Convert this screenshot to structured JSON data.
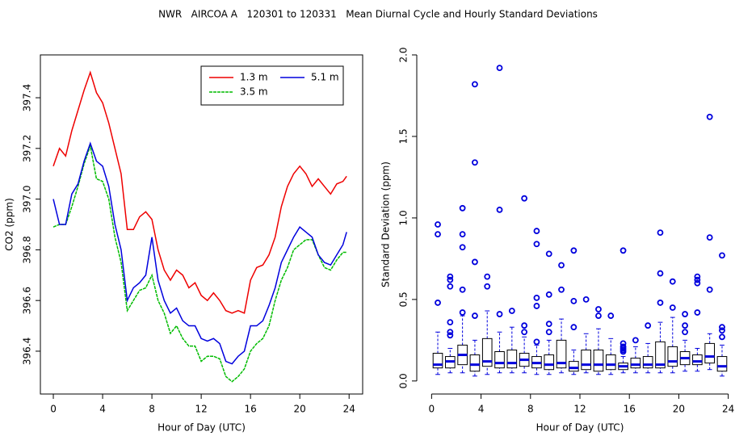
{
  "title": "NWR   AIRCOA A   120301 to 120331   Mean Diurnal Cycle and Hourly Standard Deviations",
  "chart_data": [
    {
      "type": "line",
      "xlabel": "Hour of Day (UTC)",
      "ylabel": "CO2 (ppm)",
      "xlim": [
        -1.05,
        25.1
      ],
      "ylim": [
        396.231,
        397.569
      ],
      "xticks": [
        0,
        4,
        8,
        12,
        16,
        20,
        24
      ],
      "yticks": [
        396.4,
        396.6,
        396.8,
        {
          "value": 397,
          "label": "397.0"
        },
        397.2,
        397.4
      ],
      "legend": "topright",
      "x": [
        0,
        0.5,
        1,
        1.5,
        2,
        2.5,
        3,
        3.5,
        4,
        4.5,
        5,
        5.5,
        6,
        6.5,
        7,
        7.5,
        8,
        8.5,
        9,
        9.5,
        10,
        10.5,
        11,
        11.5,
        12,
        12.5,
        13,
        13.5,
        14,
        14.5,
        15,
        15.5,
        16,
        16.5,
        17,
        17.5,
        18,
        18.5,
        19,
        19.5,
        20,
        20.5,
        21,
        21.5,
        22,
        22.5,
        23,
        23.5,
        23.8
      ],
      "series": [
        {
          "name": "1.3 m",
          "color": "#ee0000",
          "values": [
            397.13,
            397.2,
            397.17,
            397.27,
            397.35,
            397.43,
            397.5,
            397.42,
            397.38,
            397.3,
            397.2,
            397.1,
            396.88,
            396.88,
            396.93,
            396.95,
            396.92,
            396.8,
            396.72,
            396.68,
            396.72,
            396.7,
            396.65,
            396.67,
            396.62,
            396.6,
            396.63,
            396.6,
            396.56,
            396.55,
            396.56,
            396.55,
            396.68,
            396.73,
            396.74,
            396.78,
            396.85,
            396.97,
            397.05,
            397.1,
            397.13,
            397.1,
            397.05,
            397.08,
            397.05,
            397.02,
            397.06,
            397.07,
            397.09
          ]
        },
        {
          "name": "3.5 m",
          "color": "#00bb00",
          "values": [
            396.89,
            396.9,
            396.9,
            396.97,
            397.05,
            397.14,
            397.21,
            397.08,
            397.07,
            397.0,
            396.85,
            396.75,
            396.56,
            396.6,
            396.64,
            396.65,
            396.7,
            396.6,
            396.55,
            396.47,
            396.5,
            396.45,
            396.42,
            396.42,
            396.36,
            396.38,
            396.38,
            396.37,
            396.3,
            396.28,
            396.3,
            396.33,
            396.4,
            396.43,
            396.45,
            396.5,
            396.6,
            396.68,
            396.73,
            396.8,
            396.82,
            396.84,
            396.84,
            396.78,
            396.73,
            396.72,
            396.76,
            396.79,
            396.79
          ]
        },
        {
          "name": "5.1 m",
          "color": "#0000dd",
          "values": [
            397.0,
            396.9,
            396.9,
            397.02,
            397.06,
            397.15,
            397.22,
            397.15,
            397.13,
            397.05,
            396.9,
            396.8,
            396.6,
            396.65,
            396.67,
            396.7,
            396.85,
            396.68,
            396.6,
            396.55,
            396.57,
            396.52,
            396.5,
            396.5,
            396.45,
            396.44,
            396.45,
            396.43,
            396.36,
            396.35,
            396.38,
            396.4,
            396.5,
            396.5,
            396.52,
            396.58,
            396.65,
            396.75,
            396.8,
            396.85,
            396.89,
            396.87,
            396.85,
            396.78,
            396.75,
            396.74,
            396.78,
            396.82,
            396.87
          ]
        }
      ]
    },
    {
      "type": "boxplot",
      "xlabel": "Hour of Day (UTC)",
      "ylabel": "Standard Deviation (ppm)",
      "xlim": [
        -1.2,
        25.2
      ],
      "ylim": [
        -0.08,
        2.0
      ],
      "xticks": [
        0,
        4,
        8,
        12,
        16,
        20,
        24
      ],
      "yticks": [
        {
          "value": 0,
          "label": "0.0"
        },
        0.5,
        {
          "value": 1,
          "label": "1.0"
        },
        1.5,
        {
          "value": 2,
          "label": "2.0"
        }
      ],
      "color": "#0000dd",
      "x": [
        0.5,
        1.5,
        2.5,
        3.5,
        4.5,
        5.5,
        6.5,
        7.5,
        8.5,
        9.5,
        10.5,
        11.5,
        12.5,
        13.5,
        14.5,
        15.5,
        16.5,
        17.5,
        18.5,
        19.5,
        20.5,
        21.5,
        22.5,
        23.5
      ],
      "lower_whisker": [
        0.04,
        0.05,
        0.05,
        0.03,
        0.04,
        0.05,
        0.05,
        0.05,
        0.04,
        0.04,
        0.05,
        0.04,
        0.05,
        0.04,
        0.04,
        0.05,
        0.05,
        0.05,
        0.05,
        0.05,
        0.06,
        0.06,
        0.07,
        0.03
      ],
      "q1": [
        0.08,
        0.08,
        0.1,
        0.06,
        0.09,
        0.08,
        0.08,
        0.09,
        0.08,
        0.07,
        0.08,
        0.06,
        0.07,
        0.06,
        0.07,
        0.07,
        0.08,
        0.08,
        0.08,
        0.09,
        0.1,
        0.1,
        0.11,
        0.06
      ],
      "median": [
        0.1,
        0.12,
        0.16,
        0.1,
        0.12,
        0.11,
        0.11,
        0.13,
        0.11,
        0.1,
        0.11,
        0.08,
        0.1,
        0.1,
        0.1,
        0.09,
        0.1,
        0.1,
        0.1,
        0.12,
        0.14,
        0.12,
        0.15,
        0.09
      ],
      "q3": [
        0.17,
        0.15,
        0.22,
        0.16,
        0.26,
        0.18,
        0.19,
        0.17,
        0.15,
        0.16,
        0.25,
        0.12,
        0.19,
        0.19,
        0.16,
        0.11,
        0.14,
        0.15,
        0.24,
        0.21,
        0.18,
        0.16,
        0.23,
        0.15
      ],
      "upper_whisker": [
        0.3,
        0.2,
        0.4,
        0.25,
        0.43,
        0.3,
        0.33,
        0.27,
        0.22,
        0.25,
        0.38,
        0.19,
        0.29,
        0.32,
        0.26,
        0.15,
        0.21,
        0.23,
        0.36,
        0.39,
        0.25,
        0.2,
        0.29,
        0.22
      ],
      "outliers": [
        [
          0.48,
          0.9,
          0.96
        ],
        [
          0.28,
          0.3,
          0.36,
          0.58,
          0.62,
          0.64
        ],
        [
          0.42,
          0.56,
          0.82,
          0.9,
          1.06
        ],
        [
          0.4,
          0.73,
          1.34,
          1.82
        ],
        [
          0.58,
          0.64
        ],
        [
          0.41,
          1.05,
          1.92
        ],
        [
          0.43
        ],
        [
          0.3,
          0.34,
          1.12
        ],
        [
          0.24,
          0.46,
          0.51,
          0.84,
          0.92
        ],
        [
          0.3,
          0.35,
          0.53,
          0.78
        ],
        [
          0.56,
          0.71
        ],
        [
          0.33,
          0.49,
          0.8
        ],
        [
          0.5
        ],
        [
          0.4,
          0.44
        ],
        [
          0.4
        ],
        [
          0.18,
          0.19,
          0.2,
          0.21,
          0.23,
          0.8
        ],
        [
          0.25
        ],
        [
          0.34
        ],
        [
          0.48,
          0.66,
          0.91
        ],
        [
          0.45,
          0.61
        ],
        [
          0.3,
          0.34,
          0.41
        ],
        [
          0.42,
          0.6,
          0.62,
          0.64
        ],
        [
          0.56,
          0.88,
          1.62
        ],
        [
          0.27,
          0.31,
          0.33,
          0.77
        ]
      ]
    }
  ]
}
